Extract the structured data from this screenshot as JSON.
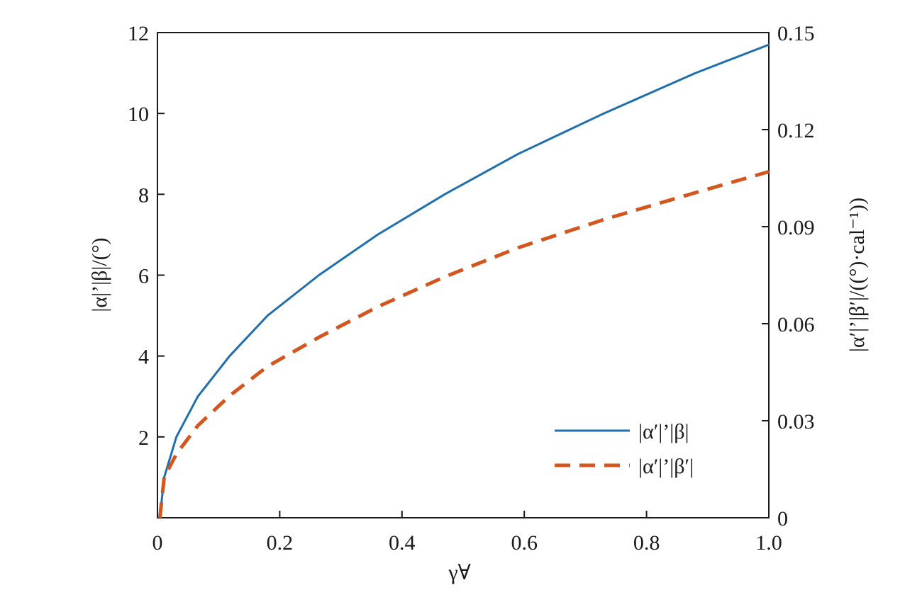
{
  "chart_data": {
    "type": "line",
    "title": "",
    "xlabel": "γ∀",
    "ylabel": "|α|’|β|/(°)",
    "y2label": "|α′|’|β′|/((°)·cal⁻¹))",
    "xlim": [
      0,
      1.0
    ],
    "ylim": [
      0,
      12
    ],
    "y2lim": [
      0,
      0.15
    ],
    "x_ticks": [
      0,
      0.2,
      0.4,
      0.6,
      0.8,
      1.0
    ],
    "x_tick_labels": [
      "0",
      "0.2",
      "0.4",
      "0.6",
      "0.8",
      "1.0"
    ],
    "y_ticks": [
      2,
      4,
      6,
      8,
      10,
      12
    ],
    "y_tick_labels": [
      "2",
      "4",
      "6",
      "8",
      "10",
      "12"
    ],
    "y2_ticks": [
      0,
      0.03,
      0.06,
      0.09,
      0.12,
      0.15
    ],
    "y2_tick_labels": [
      "0",
      "0.03",
      "0.06",
      "0.09",
      "0.12",
      "0.15"
    ],
    "grid": false,
    "legend_position": "bottom-right",
    "series": [
      {
        "name": "|α′|’|β|",
        "axis": "left",
        "color": "#1f6fae",
        "style": "solid",
        "x": [
          0.004,
          0.011,
          0.031,
          0.066,
          0.118,
          0.18,
          0.264,
          0.36,
          0.47,
          0.59,
          0.73,
          0.88,
          1.0
        ],
        "y": [
          0,
          1,
          2,
          3,
          4,
          5,
          6,
          7,
          8,
          9,
          10,
          11,
          11.7
        ]
      },
      {
        "name": "|α′|’|β′|",
        "axis": "right",
        "color": "#d2561e",
        "style": "dashed",
        "x": [
          0.004,
          0.011,
          0.031,
          0.066,
          0.118,
          0.18,
          0.264,
          0.36,
          0.47,
          0.59,
          0.73,
          0.88,
          1.0
        ],
        "y": [
          0,
          0.0125,
          0.0197,
          0.0285,
          0.0377,
          0.0468,
          0.0558,
          0.0652,
          0.0745,
          0.0835,
          0.0922,
          0.1005,
          0.107
        ]
      }
    ]
  }
}
